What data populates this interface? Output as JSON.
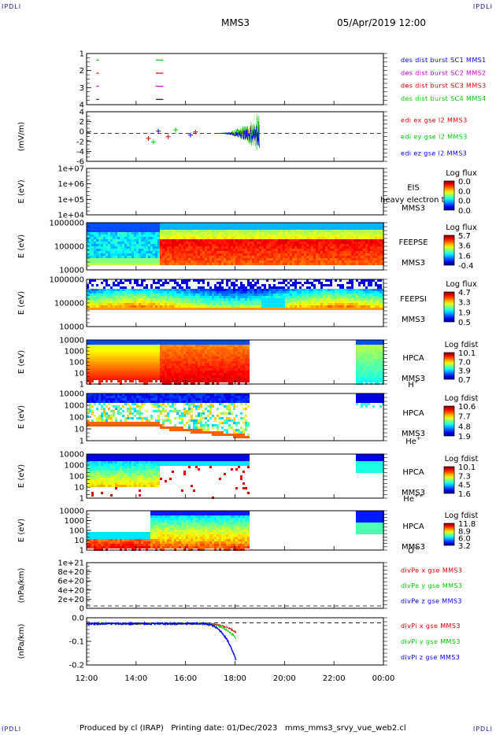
{
  "corners": {
    "tl": "IPDLI",
    "tr": "IPDLI",
    "bl": "IPDLI",
    "br": "IPDLI"
  },
  "header": {
    "left": "MMS3",
    "right": "05/Apr/2019 12:00"
  },
  "footer": "Produced by cl (IRAP)   Printing date: 01/Dec/2023   mms_mms3_srvy_vue_web2.cl",
  "colors": {
    "mms1": "#0000ff",
    "mms2": "#cc00cc",
    "mms3": "#dd0000",
    "mms4": "#00cc00",
    "ex": "#dd0000",
    "ey": "#00cc00",
    "ez": "#0000ff"
  },
  "chart_data": {
    "type": "multi-panel time series",
    "x_ticks": [
      "12:00",
      "14:00",
      "16:00",
      "18:00",
      "20:00",
      "22:00",
      "00:00"
    ],
    "x_range_hours": [
      12,
      24
    ],
    "panels": [
      {
        "id": "burst",
        "type": "scatter",
        "yticks": [
          "1",
          "2",
          "3",
          "4"
        ],
        "ylim": [
          0.6,
          4.5
        ],
        "legend": [
          {
            "text": "des dist burst SC1 MMS1",
            "color": "#0000ff"
          },
          {
            "text": "des dist burst SC2 MMS2",
            "color": "#cc00cc"
          },
          {
            "text": "des dist burst SC3 MMS3",
            "color": "#dd0000"
          },
          {
            "text": "des dist burst SC4 MMS4",
            "color": "#00cc00"
          }
        ],
        "segments": [
          {
            "sc": 4,
            "t0": 12.4,
            "t1": 12.5
          },
          {
            "sc": 4,
            "t0": 14.8,
            "t1": 15.1
          },
          {
            "sc": 3,
            "t0": 12.4,
            "t1": 12.5
          },
          {
            "sc": 3,
            "t0": 14.8,
            "t1": 15.1
          },
          {
            "sc": 2,
            "t0": 12.4,
            "t1": 12.5
          },
          {
            "sc": 2,
            "t0": 14.8,
            "t1": 15.1
          },
          {
            "sc": 1,
            "t0": 12.4,
            "t1": 12.5
          },
          {
            "sc": 1,
            "t0": 14.8,
            "t1": 15.1
          }
        ]
      },
      {
        "id": "efield",
        "type": "line",
        "ylabel": "(mV/m)",
        "yticks": [
          "4",
          "2",
          "0",
          "-2",
          "-4",
          "-6"
        ],
        "ylim": [
          -6.5,
          5
        ],
        "legend": [
          {
            "text": "edi ex gse l2 MMS3",
            "color": "#dd0000"
          },
          {
            "text": "edi ey gse l2 MMS3",
            "color": "#00cc00"
          },
          {
            "text": "edi ez gse l2 MMS3",
            "color": "#0000ff"
          }
        ]
      },
      {
        "id": "eis",
        "type": "heatmap",
        "ylabel": "E (eV)",
        "yticks": [
          "1e+07",
          "1e+06",
          "1e+05",
          "1e+04"
        ],
        "name": "EIS",
        "sub": "MMS3",
        "overlay": "heavy electron to",
        "cbar_title": "Log flux",
        "cbar_ticks": [
          "0.0",
          "0.0",
          "0.0",
          "0.0"
        ]
      },
      {
        "id": "feepse",
        "type": "heatmap",
        "ylabel": "E (eV)",
        "yticks": [
          "1000000",
          "100000",
          "10000"
        ],
        "name": "FEEPSE",
        "sub": "MMS3",
        "cbar_title": "Log flux",
        "cbar_ticks": [
          "5.7",
          "3.6",
          "1.6",
          "-0.4"
        ]
      },
      {
        "id": "feepsi",
        "type": "heatmap",
        "ylabel": "E (eV)",
        "yticks": [
          "1000000",
          "100000",
          "10000"
        ],
        "name": "FEEPSI",
        "sub": "MMS3",
        "cbar_title": "Log flux",
        "cbar_ticks": [
          "4.7",
          "3.3",
          "1.9",
          "0.5"
        ]
      },
      {
        "id": "hpca_h",
        "type": "heatmap",
        "ylabel": "E (eV)",
        "yticks": [
          "10000",
          "1000",
          "100",
          "10",
          "1"
        ],
        "name": "HPCA",
        "sub": "MMS3",
        "species": "H",
        "species_sup": "+",
        "cbar_title": "Log fdist",
        "cbar_ticks": [
          "10.1",
          "7.0",
          "3.9",
          "0.7"
        ]
      },
      {
        "id": "hpca_he",
        "type": "heatmap",
        "ylabel": "E (eV)",
        "yticks": [
          "10000",
          "1000",
          "100",
          "10",
          "1"
        ],
        "name": "HPCA",
        "sub": "MMS3",
        "species": "He",
        "species_sup": "+",
        "cbar_title": "Log fdist",
        "cbar_ticks": [
          "10.6",
          "7.7",
          "4.8",
          "1.9"
        ]
      },
      {
        "id": "hpca_he2",
        "type": "heatmap",
        "ylabel": "E (eV)",
        "yticks": [
          "10000",
          "1000",
          "100",
          "10",
          "1"
        ],
        "name": "HPCA",
        "sub": "MMS3",
        "species": "He",
        "species_sup": "++",
        "cbar_title": "Log fdist",
        "cbar_ticks": [
          "10.1",
          "7.3",
          "4.5",
          "1.6"
        ]
      },
      {
        "id": "hpca_o",
        "type": "heatmap",
        "ylabel": "E (eV)",
        "yticks": [
          "10000",
          "1000",
          "100",
          "10",
          "1"
        ],
        "name": "HPCA",
        "sub": "MMS3",
        "species": "O",
        "species_sup": "+",
        "cbar_title": "Log fdist",
        "cbar_ticks": [
          "11.8",
          "8.9",
          "6.0",
          "3.2"
        ]
      },
      {
        "id": "divpe",
        "type": "line",
        "ylabel": "(nPa/km)",
        "yticks": [
          "1e+21",
          "8e+20",
          "6e+20",
          "4e+20",
          "2e+20",
          "0"
        ],
        "legend": [
          {
            "text": "divPe x gse MMS3",
            "color": "#dd0000"
          },
          {
            "text": "divPe y gse MMS3",
            "color": "#00cc00"
          },
          {
            "text": "divPe z gse MMS3",
            "color": "#0000ff"
          }
        ]
      },
      {
        "id": "divpi",
        "type": "line",
        "ylabel": "(nPa/km)",
        "yticks": [
          "0.0",
          "-0.1",
          "-0.2"
        ],
        "ylim": [
          -0.28,
          0.04
        ],
        "legend": [
          {
            "text": "divPi x gse MMS3",
            "color": "#dd0000"
          },
          {
            "text": "divPi y gse MMS3",
            "color": "#00cc00"
          },
          {
            "text": "divPi z gse MMS3",
            "color": "#0000ff"
          }
        ]
      }
    ]
  }
}
